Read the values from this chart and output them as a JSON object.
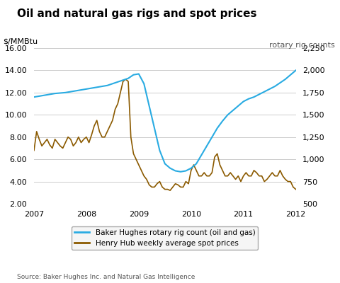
{
  "title": "Oil and natural gas rigs and spot prices",
  "ylabel_left": "$/MMBtu",
  "ylabel_right": "rotary rig counts",
  "source": "Source: Baker Hughes Inc. and Natural Gas Intelligence",
  "ylim_left": [
    2.0,
    16.0
  ],
  "ylim_right": [
    500,
    2250
  ],
  "yticks_left": [
    2.0,
    4.0,
    6.0,
    8.0,
    10.0,
    12.0,
    14.0,
    16.0
  ],
  "yticks_right": [
    500,
    750,
    1000,
    1250,
    1500,
    1750,
    2000,
    2250
  ],
  "legend": [
    "Baker Hughes rotary rig count (oil and gas)",
    "Henry Hub weekly average spot prices"
  ],
  "line_colors": [
    "#29ABE2",
    "#8B5A00"
  ],
  "bg_color": "#FFFFFF",
  "grid_color": "#CCCCCC",
  "rig_x": [
    2007.0,
    2007.1,
    2007.2,
    2007.3,
    2007.4,
    2007.5,
    2007.6,
    2007.7,
    2007.8,
    2007.9,
    2008.0,
    2008.1,
    2008.2,
    2008.3,
    2008.4,
    2008.5,
    2008.6,
    2008.7,
    2008.8,
    2008.9,
    2009.0,
    2009.1,
    2009.2,
    2009.3,
    2009.4,
    2009.5,
    2009.6,
    2009.7,
    2009.8,
    2009.9,
    2010.0,
    2010.1,
    2010.2,
    2010.3,
    2010.4,
    2010.5,
    2010.6,
    2010.7,
    2010.8,
    2010.9,
    2011.0,
    2011.1,
    2011.2,
    2011.3,
    2011.4,
    2011.5,
    2011.6,
    2011.7,
    2011.8,
    2011.9,
    2012.0
  ],
  "rig_y": [
    1700,
    1710,
    1720,
    1730,
    1740,
    1745,
    1750,
    1760,
    1770,
    1780,
    1790,
    1800,
    1810,
    1820,
    1830,
    1850,
    1870,
    1890,
    1910,
    1950,
    1960,
    1850,
    1600,
    1350,
    1100,
    950,
    900,
    870,
    860,
    870,
    900,
    950,
    1050,
    1150,
    1250,
    1350,
    1430,
    1500,
    1550,
    1600,
    1650,
    1680,
    1700,
    1730,
    1760,
    1790,
    1820,
    1860,
    1900,
    1950,
    2000
  ],
  "price_x": [
    2007.0,
    2007.05,
    2007.1,
    2007.15,
    2007.2,
    2007.25,
    2007.3,
    2007.35,
    2007.4,
    2007.45,
    2007.5,
    2007.55,
    2007.6,
    2007.65,
    2007.7,
    2007.75,
    2007.8,
    2007.85,
    2007.9,
    2007.95,
    2008.0,
    2008.05,
    2008.1,
    2008.15,
    2008.2,
    2008.25,
    2008.3,
    2008.35,
    2008.4,
    2008.45,
    2008.5,
    2008.55,
    2008.6,
    2008.65,
    2008.7,
    2008.75,
    2008.8,
    2008.85,
    2008.9,
    2008.95,
    2009.0,
    2009.05,
    2009.1,
    2009.15,
    2009.2,
    2009.25,
    2009.3,
    2009.35,
    2009.4,
    2009.45,
    2009.5,
    2009.55,
    2009.6,
    2009.65,
    2009.7,
    2009.75,
    2009.8,
    2009.85,
    2009.9,
    2009.95,
    2010.0,
    2010.05,
    2010.1,
    2010.15,
    2010.2,
    2010.25,
    2010.3,
    2010.35,
    2010.4,
    2010.45,
    2010.5,
    2010.55,
    2010.6,
    2010.65,
    2010.7,
    2010.75,
    2010.8,
    2010.85,
    2010.9,
    2010.95,
    2011.0,
    2011.05,
    2011.1,
    2011.15,
    2011.2,
    2011.25,
    2011.3,
    2011.35,
    2011.4,
    2011.45,
    2011.5,
    2011.55,
    2011.6,
    2011.65,
    2011.7,
    2011.75,
    2011.8,
    2011.85,
    2011.9,
    2011.95,
    2012.0
  ],
  "price_y": [
    6.8,
    8.5,
    7.8,
    7.2,
    7.5,
    7.8,
    7.3,
    7.0,
    7.8,
    7.5,
    7.2,
    7.0,
    7.5,
    8.0,
    7.8,
    7.2,
    7.5,
    8.0,
    7.5,
    7.8,
    8.0,
    7.5,
    8.2,
    9.0,
    9.5,
    8.5,
    8.0,
    8.0,
    8.5,
    9.0,
    9.5,
    10.5,
    11.0,
    12.0,
    13.0,
    13.2,
    13.0,
    8.0,
    6.5,
    6.0,
    5.5,
    5.0,
    4.5,
    4.2,
    3.7,
    3.5,
    3.5,
    3.8,
    4.0,
    3.5,
    3.3,
    3.3,
    3.2,
    3.5,
    3.8,
    3.7,
    3.5,
    3.5,
    4.0,
    3.8,
    5.0,
    5.5,
    5.0,
    4.5,
    4.5,
    4.8,
    4.5,
    4.5,
    4.8,
    6.2,
    6.5,
    5.5,
    5.0,
    4.5,
    4.5,
    4.8,
    4.5,
    4.2,
    4.5,
    4.0,
    4.5,
    4.8,
    4.5,
    4.5,
    5.0,
    4.8,
    4.5,
    4.5,
    4.0,
    4.2,
    4.5,
    4.8,
    4.5,
    4.5,
    5.0,
    4.5,
    4.2,
    4.0,
    4.0,
    3.5,
    3.3
  ]
}
